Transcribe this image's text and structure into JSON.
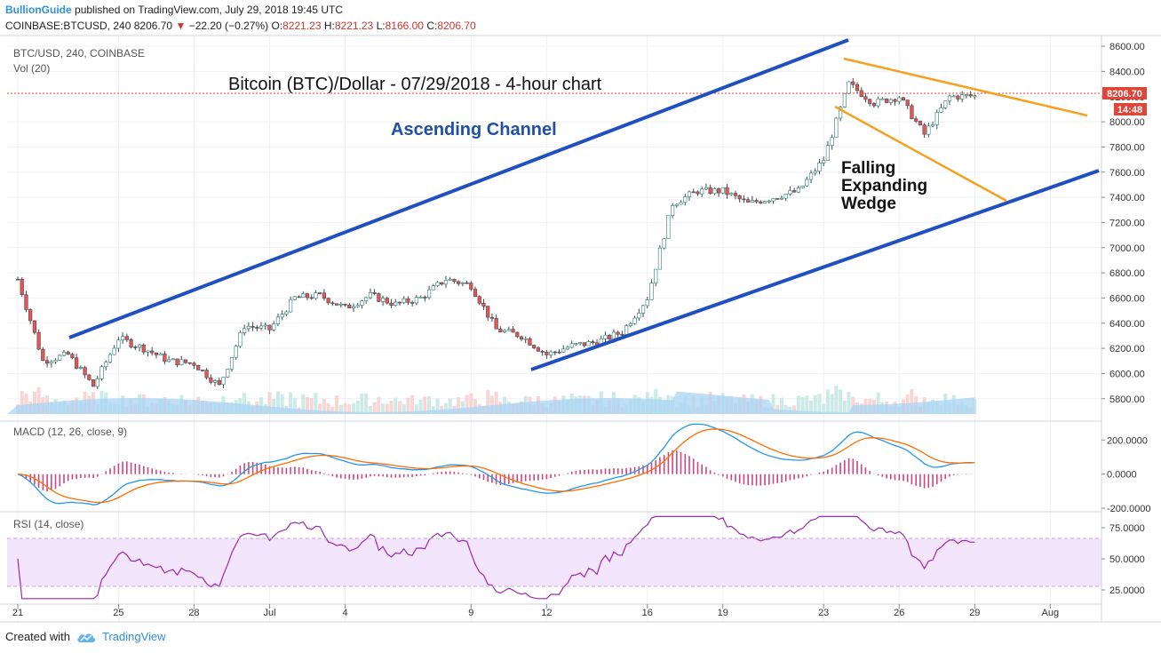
{
  "header": {
    "publisher": "BullionGuide",
    "published_text": "published on TradingView.com, July 29, 2018 19:45 UTC",
    "symbol": "COINBASE:BTCUSD, 240",
    "last": "8206.70",
    "change": "−22.20 (−0.27%)",
    "o_label": "O:",
    "o": "8221.23",
    "h_label": "H:",
    "h": "8221.23",
    "l_label": "L:",
    "l": "8166.00",
    "c_label": "C:",
    "c": "8206.70"
  },
  "chart_data": [
    {
      "type": "candlestick",
      "pane": "price",
      "symbol_label": "BTC/USD, 240, COINBASE",
      "volume_label": "Vol (20)",
      "title": "Bitcoin (BTC)/Dollar - 07/29/2018 - 4-hour chart",
      "ylim": [
        5650,
        8650
      ],
      "yticks": [
        "8600.00",
        "8400.00",
        "8200.00",
        "8000.00",
        "7800.00",
        "7600.00",
        "7400.00",
        "7200.00",
        "7000.00",
        "6800.00",
        "6600.00",
        "6400.00",
        "6200.00",
        "6000.00",
        "5800.00"
      ],
      "last_price_label": "8206.70",
      "countdown_label": "14:48",
      "series": [
        {
          "name": "BTCUSD",
          "close_by_date": [
            {
              "date": "Jun 21",
              "close": 6750
            },
            {
              "date": "Jun 22",
              "close": 6100
            },
            {
              "date": "Jun 23",
              "close": 6150
            },
            {
              "date": "Jun 24",
              "close": 5900
            },
            {
              "date": "Jun 25",
              "close": 6280
            },
            {
              "date": "Jun 26",
              "close": 6200
            },
            {
              "date": "Jun 27",
              "close": 6100
            },
            {
              "date": "Jun 28",
              "close": 6080
            },
            {
              "date": "Jun 29",
              "close": 5900
            },
            {
              "date": "Jun 30",
              "close": 6380
            },
            {
              "date": "Jul 1",
              "close": 6350
            },
            {
              "date": "Jul 2",
              "close": 6600
            },
            {
              "date": "Jul 3",
              "close": 6620
            },
            {
              "date": "Jul 4",
              "close": 6520
            },
            {
              "date": "Jul 5",
              "close": 6620
            },
            {
              "date": "Jul 6",
              "close": 6550
            },
            {
              "date": "Jul 7",
              "close": 6600
            },
            {
              "date": "Jul 8",
              "close": 6750
            },
            {
              "date": "Jul 9",
              "close": 6700
            },
            {
              "date": "Jul 10",
              "close": 6350
            },
            {
              "date": "Jul 11",
              "close": 6300
            },
            {
              "date": "Jul 12",
              "close": 6150
            },
            {
              "date": "Jul 13",
              "close": 6220
            },
            {
              "date": "Jul 14",
              "close": 6250
            },
            {
              "date": "Jul 15",
              "close": 6330
            },
            {
              "date": "Jul 16",
              "close": 6600
            },
            {
              "date": "Jul 17",
              "close": 7350
            },
            {
              "date": "Jul 18",
              "close": 7450
            },
            {
              "date": "Jul 19",
              "close": 7450
            },
            {
              "date": "Jul 20",
              "close": 7350
            },
            {
              "date": "Jul 21",
              "close": 7400
            },
            {
              "date": "Jul 22",
              "close": 7450
            },
            {
              "date": "Jul 23",
              "close": 7700
            },
            {
              "date": "Jul 24",
              "close": 8300
            },
            {
              "date": "Jul 25",
              "close": 8150
            },
            {
              "date": "Jul 26",
              "close": 8200
            },
            {
              "date": "Jul 27",
              "close": 7900
            },
            {
              "date": "Jul 28",
              "close": 8200
            },
            {
              "date": "Jul 29",
              "close": 8206.7
            }
          ]
        }
      ]
    },
    {
      "type": "line",
      "pane": "macd",
      "label": "MACD (12, 26, close, 9)",
      "ylim": [
        -210,
        290
      ],
      "yticks": [
        "200.0000",
        "0.0000",
        "-200.0000"
      ]
    },
    {
      "type": "line",
      "pane": "rsi",
      "label": "RSI (14, close)",
      "ylim": [
        15,
        85
      ],
      "yticks": [
        "75.0000",
        "50.0000",
        "25.0000"
      ],
      "band": [
        30,
        70
      ]
    }
  ],
  "xaxis": {
    "ticks": [
      "21",
      "25",
      "28",
      "Jul",
      "4",
      "9",
      "12",
      "16",
      "19",
      "23",
      "26",
      "29",
      "Aug"
    ]
  },
  "annotations": {
    "ascending_channel": "Ascending Channel",
    "wedge_line1": "Falling",
    "wedge_line2": "Expanding",
    "wedge_line3": "Wedge"
  },
  "footer": {
    "created_with": "Created with",
    "brand": "TradingView"
  },
  "colors": {
    "channel": "#1f4fc0",
    "wedge": "#f7a01e",
    "up": "#26a69a",
    "down": "#ef5350",
    "macd_line": "#2196f3",
    "signal_line": "#ff6d00",
    "histogram": "#c2185b",
    "rsi_line": "#9c27b0",
    "rsi_band": "#f3e5fb",
    "volume": "#a9d4f3",
    "last_price_bg": "#e0453a"
  }
}
